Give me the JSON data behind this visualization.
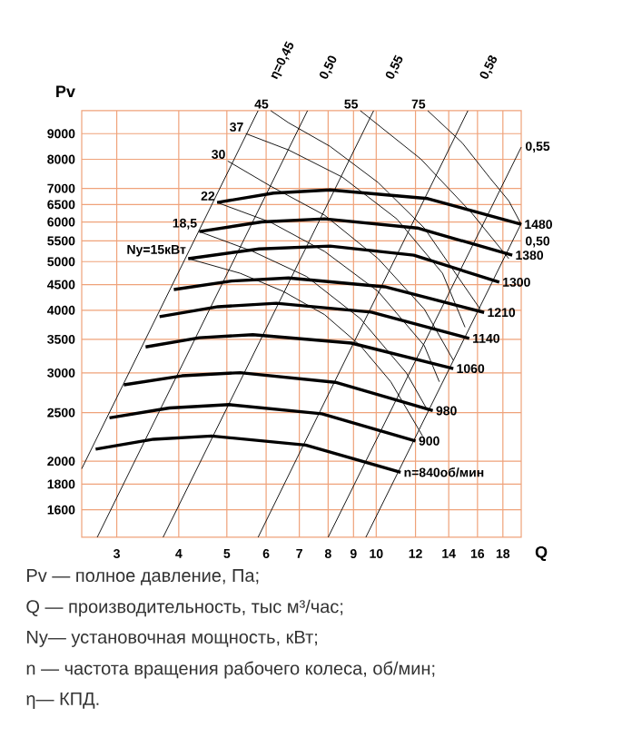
{
  "chart_data": {
    "type": "line",
    "xlabel": "Q",
    "ylabel": "Pv",
    "log": "xy",
    "grid": true,
    "xlim": [
      2.55,
      19.6
    ],
    "ylim": [
      1410,
      10000
    ],
    "xticks": [
      3,
      4,
      5,
      6,
      7,
      8,
      9,
      10,
      12,
      14,
      16,
      18
    ],
    "yticks": [
      1600,
      1800,
      2000,
      2500,
      3000,
      3500,
      4000,
      4500,
      5000,
      5500,
      6000,
      6500,
      7000,
      8000,
      9000
    ],
    "series": [
      {
        "name": "1480",
        "color": "#000000",
        "x": [
          4.78,
          6.21,
          8.07,
          12.7,
          19.6
        ],
        "values": [
          6560,
          6850,
          6950,
          6680,
          5935
        ]
      },
      {
        "name": "1380",
        "color": "#000000",
        "x": [
          4.4,
          5.88,
          7.87,
          12.1,
          18.8
        ],
        "values": [
          5740,
          6000,
          6085,
          5835,
          5150
        ]
      },
      {
        "name": "1300",
        "color": "#000000",
        "x": [
          4.18,
          5.81,
          8.07,
          11.9,
          17.7
        ],
        "values": [
          5070,
          5300,
          5370,
          5150,
          4550
        ]
      },
      {
        "name": "1210",
        "color": "#000000",
        "x": [
          3.91,
          5.11,
          6.66,
          10.4,
          16.5
        ],
        "values": [
          4400,
          4575,
          4640,
          4455,
          3960
        ]
      },
      {
        "name": "1140",
        "color": "#000000",
        "x": [
          3.66,
          4.8,
          6.29,
          9.77,
          15.4
        ],
        "values": [
          3885,
          4065,
          4130,
          3967,
          3515
        ]
      },
      {
        "name": "1060",
        "color": "#000000",
        "x": [
          3.43,
          4.4,
          5.64,
          8.91,
          14.3
        ],
        "values": [
          3380,
          3525,
          3575,
          3440,
          3060
        ]
      },
      {
        "name": "980",
        "color": "#000000",
        "x": [
          3.1,
          4.06,
          5.32,
          8.27,
          13.0
        ],
        "values": [
          2840,
          2960,
          3003,
          2873,
          2522
        ]
      },
      {
        "name": "900",
        "color": "#000000",
        "x": [
          2.9,
          3.83,
          5.06,
          7.77,
          12.0
        ],
        "values": [
          2440,
          2553,
          2593,
          2486,
          2195
        ]
      },
      {
        "name": "n=840об/мин",
        "color": "#000000",
        "x": [
          2.72,
          3.56,
          4.66,
          7.21,
          11.2
        ],
        "values": [
          2113,
          2212,
          2245,
          2153,
          1901
        ]
      },
      {
        "name": "η=0,45",
        "color": "#000000",
        "x": [
          2.55,
          5.78
        ],
        "values": [
          1932,
          10000
        ]
      },
      {
        "name": "0,50",
        "color": "#000000",
        "x": [
          2.74,
          7.27
        ],
        "values": [
          1410,
          10000
        ]
      },
      {
        "name": "0,55",
        "color": "#000000",
        "x": [
          3.72,
          9.88
        ],
        "values": [
          1410,
          10000
        ]
      },
      {
        "name": "0,58",
        "color": "#000000",
        "x": [
          5.78,
          15.3
        ],
        "values": [
          1410,
          10000
        ]
      },
      {
        "name": "0,55",
        "color": "#000000",
        "x": [
          8.0,
          19.6
        ],
        "values": [
          1410,
          8460
        ]
      },
      {
        "name": "0,50",
        "color": "#000000",
        "x": [
          9.53,
          19.6
        ],
        "values": [
          1410,
          5960
        ]
      },
      {
        "name": "Ny=15кВт",
        "color": "#000000",
        "x": [
          4.18,
          5.32,
          6.5,
          7.87,
          9.29,
          10.7,
          12.4
        ],
        "values": [
          5070,
          4740,
          4360,
          3920,
          3400,
          2880,
          2245
        ]
      },
      {
        "name": "18,5",
        "color": "#000000",
        "x": [
          4.4,
          5.64,
          7.24,
          9.29,
          11.5,
          12.7
        ],
        "values": [
          5740,
          5240,
          4670,
          3850,
          3000,
          2522
        ]
      },
      {
        "name": "22",
        "color": "#000000",
        "x": [
          4.78,
          6.13,
          7.87,
          10.09,
          12.5,
          13.4
        ],
        "values": [
          6560,
          5990,
          5240,
          4360,
          3400,
          2880
        ]
      },
      {
        "name": "30",
        "color": "#000000",
        "x": [
          5.02,
          6.13,
          7.87,
          10.09,
          12.5,
          14.3
        ],
        "values": [
          7940,
          7070,
          6190,
          5070,
          4020,
          3180
        ]
      },
      {
        "name": "37",
        "color": "#000000",
        "x": [
          5.46,
          6.66,
          8.55,
          11.0,
          13.6,
          15.1
        ],
        "values": [
          9000,
          8350,
          7370,
          6085,
          4740,
          3700
        ]
      },
      {
        "name": "45",
        "color": "#000000",
        "x": [
          6.13,
          6.66,
          8.07,
          10.09,
          12.5,
          16.2
        ],
        "values": [
          10000,
          9460,
          8490,
          7190,
          5835,
          4020
        ]
      },
      {
        "name": "55",
        "color": "#000000",
        "x": [
          9.29,
          12.3,
          15.6,
          18.5
        ],
        "values": [
          10000,
          8010,
          6240,
          5070
        ]
      },
      {
        "name": "75",
        "color": "#000000",
        "x": [
          12.7,
          14.9,
          16.9,
          18.5,
          19.6
        ],
        "values": [
          10000,
          8630,
          7370,
          6610,
          5935
        ]
      }
    ],
    "annotations": [
      "Pv — полное давление, Па;",
      "Q — производительность, тыс м³/час;",
      "Ny— установочная мощность, кВт;",
      "n — частота вращения рабочего колеса,  об/мин;",
      "η— КПД."
    ]
  }
}
